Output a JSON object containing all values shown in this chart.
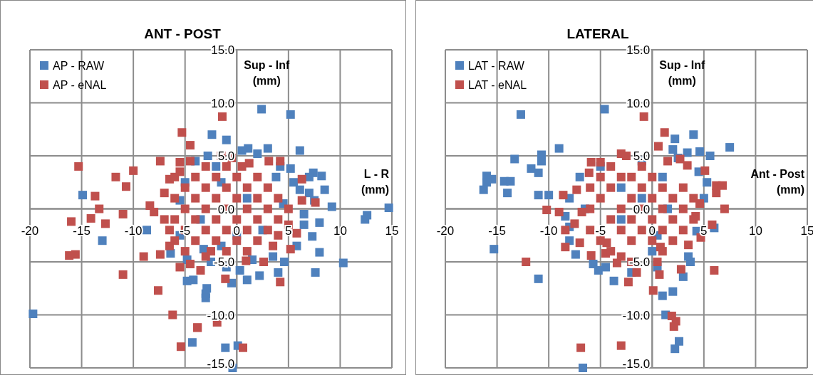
{
  "chart_data": [
    {
      "type": "scatter",
      "title": "ANT - POST",
      "xlabel": "L - R (mm)",
      "ylabel": "Sup - Inf (mm)",
      "xlim": [
        -20,
        15
      ],
      "xticks": [
        -20,
        -15,
        -10,
        -5,
        0,
        5,
        10,
        15
      ],
      "ylim": [
        -15,
        15
      ],
      "yticks": [
        {
          "value": -15,
          "label": "-15.0"
        },
        {
          "value": -10,
          "label": "-10.0"
        },
        {
          "value": -5,
          "label": "-5.0"
        },
        {
          "value": 0,
          "label": "0.0"
        },
        {
          "value": 5,
          "label": "5.0"
        },
        {
          "value": 10,
          "label": "10.0"
        },
        {
          "value": 15,
          "label": "15.0"
        }
      ],
      "grid": true,
      "legend": "top left",
      "marker": "square",
      "series": [
        {
          "name": "AP - RAW",
          "color": "#4f81bd",
          "x": [
            -19.7,
            -14.9,
            -13.0,
            -8.7,
            -6.4,
            -4.2,
            -4.3,
            -2.9,
            2.4,
            5.2,
            -2.4,
            -1.0,
            6.1,
            7.4,
            8.2,
            9.2,
            12.6,
            12.4,
            14.7,
            8.0,
            7.3,
            8.0,
            10.3,
            7.6,
            4.6,
            4.0,
            2.2,
            -3.0,
            -3.0,
            -1.1,
            0.1,
            -0.4,
            1.1,
            3.0,
            5.2,
            6.1,
            0.3,
            -2.8,
            0.5,
            2.0,
            4.2,
            5.5,
            7.0,
            8.5,
            7.5,
            6.5,
            5.8,
            3.5,
            1.5,
            -1.0,
            -2.5,
            -4.8,
            -5.5,
            -5.0,
            -4.0,
            -2.0,
            4.5,
            2.5,
            -1.5,
            1.0,
            -3.5,
            -1.5,
            0.0,
            3.8,
            7.0,
            6.5,
            -5.5,
            -3.2,
            -0.5,
            1.0,
            -4.8
          ],
          "values": [
            -9.9,
            1.3,
            -3.0,
            -2.0,
            -4.2,
            -6.7,
            -12.6,
            -7.5,
            9.4,
            8.9,
            7.0,
            6.5,
            5.5,
            3.4,
            3.1,
            0.2,
            -0.6,
            -1.0,
            0.1,
            -1.3,
            -2.6,
            -4.1,
            -5.1,
            -6.0,
            -5.0,
            -6.0,
            -6.3,
            -8.0,
            -8.4,
            -13.1,
            -12.9,
            -15.0,
            5.7,
            5.7,
            3.8,
            1.8,
            -5.8,
            5.0,
            5.5,
            5.2,
            4.0,
            2.5,
            1.5,
            1.8,
            0.8,
            -0.5,
            -3.5,
            -4.5,
            -4.8,
            -5.5,
            -5.0,
            -4.8,
            -2.5,
            2.5,
            4.5,
            4.0,
            0.5,
            -2.0,
            -3.5,
            1.0,
            -1.0,
            2.5,
            -2.5,
            3.0,
            3.0,
            -1.5,
            0.8,
            -3.8,
            -7.0,
            -6.7,
            -6.8
          ]
        },
        {
          "name": "AP - eNAL",
          "color": "#c0504d",
          "x": [
            -15.3,
            -13.7,
            -13.3,
            -14.1,
            -16.0,
            -12.7,
            -16.2,
            -15.6,
            -11.7,
            -10.7,
            -10.0,
            -11.0,
            -9.0,
            -7.4,
            -11.0,
            -7.6,
            -6.2,
            -3.8,
            -5.4,
            -7.4,
            -5.3,
            -4.5,
            -8.4,
            -8.0,
            -5.5,
            -6.5,
            -1.4,
            6.3,
            6.3,
            7.6,
            5.8,
            5.2,
            4.2,
            2.6,
            0.6,
            -1.9,
            -3.8,
            -1.1,
            0.9,
            3.1,
            4.2,
            -0.5,
            1.2,
            -6.0,
            -6.0,
            -6.0,
            -6.0,
            -5.0,
            -5.0,
            -5.0,
            -5.0,
            -4.0,
            -4.0,
            -4.0,
            -4.0,
            -3.0,
            -3.0,
            -3.0,
            -3.0,
            -3.0,
            -2.0,
            -2.0,
            -2.0,
            -2.0,
            -1.0,
            -1.0,
            -1.0,
            -1.0,
            -1.0,
            0.0,
            0.0,
            0.0,
            0.0,
            1.0,
            1.0,
            1.0,
            1.0,
            2.0,
            2.0,
            2.0,
            2.0,
            3.0,
            3.0,
            3.0,
            4.0,
            4.0,
            5.0,
            -5.5,
            -4.5,
            -6.5,
            -3.5,
            -7.0,
            -7.0,
            -2.5,
            -1.5,
            0.5,
            -4.5,
            -5.5,
            -6.5,
            5.0,
            4.0,
            3.5
          ],
          "values": [
            4.0,
            1.2,
            0.0,
            -0.9,
            -1.2,
            -1.4,
            -4.4,
            -4.3,
            3.0,
            2.1,
            3.6,
            -0.5,
            -4.5,
            -4.3,
            -6.2,
            -7.7,
            -10.0,
            -11.2,
            -13.0,
            4.5,
            7.2,
            6.0,
            0.3,
            -0.3,
            4.4,
            2.8,
            8.7,
            2.8,
            0.8,
            0.6,
            -2.3,
            -3.8,
            -6.9,
            -5.0,
            -13.1,
            -10.7,
            -11.2,
            -6.6,
            -4.9,
            4.5,
            4.5,
            4.8,
            4.3,
            -3.0,
            -1.0,
            1.0,
            3.0,
            -4.0,
            -2.0,
            0.0,
            2.0,
            -3.0,
            -1.0,
            1.0,
            3.0,
            -4.5,
            -2.0,
            0.0,
            2.0,
            4.0,
            -3.0,
            -1.0,
            1.0,
            3.0,
            -4.0,
            -2.0,
            0.0,
            2.0,
            4.0,
            -3.0,
            -1.0,
            1.0,
            3.0,
            -4.0,
            -2.0,
            0.0,
            2.0,
            -3.0,
            -1.0,
            1.0,
            3.0,
            -2.0,
            0.0,
            2.0,
            -1.0,
            1.0,
            0.0,
            -5.5,
            -5.2,
            -2.0,
            -5.8,
            -1.0,
            1.5,
            -4.0,
            5.0,
            4.0,
            4.5,
            3.5,
            -3.5,
            -1.5,
            -2.5,
            -3.5
          ]
        }
      ]
    },
    {
      "type": "scatter",
      "title": "LATERAL",
      "xlabel": "Ant - Post (mm)",
      "ylabel": "Sup - Inf (mm)",
      "xlim": [
        -20,
        15
      ],
      "xticks": [
        -20,
        -15,
        -10,
        -5,
        0,
        5,
        10,
        15
      ],
      "ylim": [
        -15,
        15
      ],
      "yticks": [
        {
          "value": -15,
          "label": "-15.0"
        },
        {
          "value": -10,
          "label": "-10.0"
        },
        {
          "value": -5,
          "label": "-5.0"
        },
        {
          "value": 0,
          "label": "0.0"
        },
        {
          "value": 5,
          "label": "5.0"
        },
        {
          "value": 10,
          "label": "10.0"
        },
        {
          "value": 15,
          "label": "15.0"
        }
      ],
      "grid": true,
      "legend": "top left",
      "marker": "square",
      "series": [
        {
          "name": "LAT - RAW",
          "color": "#4f81bd",
          "x": [
            -12.7,
            -4.6,
            -9.0,
            -13.3,
            -10.7,
            -10.7,
            -11.7,
            -11.0,
            -16.0,
            -15.5,
            -16.0,
            -16.3,
            -14.3,
            -13.7,
            -14.0,
            -11.0,
            -10.0,
            -15.3,
            -11.0,
            -8.4,
            -8.0,
            -7.4,
            -5.7,
            -5.2,
            -3.7,
            -6.7,
            4.0,
            7.5,
            2.2,
            2.0,
            4.6,
            5.6,
            3.4,
            5.3,
            6.0,
            4.3,
            3.7,
            3.0,
            1.0,
            2.0,
            1.3,
            2.6,
            2.2,
            0.5,
            -8.0,
            -7.0,
            -5.0,
            -3.0,
            -2.0,
            -1.0,
            0.0,
            1.0,
            2.5,
            3.5,
            0.5,
            -6.5,
            -8.0,
            -1.0,
            -3.0,
            1.5,
            4.5,
            5.0,
            -4.5,
            -2.0
          ],
          "values": [
            8.9,
            9.4,
            5.7,
            4.7,
            5.1,
            4.5,
            3.8,
            3.4,
            3.1,
            2.8,
            2.5,
            1.8,
            2.6,
            2.6,
            1.5,
            1.3,
            1.3,
            -3.8,
            -6.6,
            -0.7,
            -1.7,
            -4.3,
            -5.2,
            -5.8,
            -6.8,
            -15.0,
            7.0,
            5.8,
            6.6,
            5.6,
            5.4,
            5.0,
            5.3,
            2.5,
            -1.8,
            -2.1,
            -5.0,
            -6.4,
            -8.2,
            -7.8,
            -10.0,
            -12.5,
            -13.2,
            -2.5,
            1.0,
            3.0,
            4.0,
            2.0,
            -5.0,
            4.5,
            -4.0,
            3.0,
            4.8,
            -4.5,
            -5.5,
            0.0,
            -3.0,
            1.0,
            -1.0,
            0.0,
            3.5,
            1.0,
            -5.5,
            -6.0
          ]
        },
        {
          "name": "LAT - eNAL",
          "color": "#c0504d",
          "x": [
            -6.9,
            -3.0,
            -12.2,
            -10.2,
            -9.0,
            -8.4,
            -8.4,
            -5.9,
            -4.5,
            -3.4,
            -2.3,
            -3.0,
            -5.9,
            -5.0,
            -6.1,
            -7.3,
            -8.6,
            -6.8,
            -7.5,
            -7.0,
            -4.4,
            -0.8,
            1.2,
            0.6,
            2.7,
            3.4,
            5.1,
            6.2,
            6.8,
            6.2,
            7.0,
            5.8,
            4.7,
            3.5,
            6.0,
            2.8,
            0.7,
            0.1,
            1.9,
            2.3,
            2.1,
            0.8,
            4.2,
            4.6,
            -6.0,
            -6.0,
            -6.0,
            -5.0,
            -5.0,
            -5.0,
            -4.0,
            -4.0,
            -4.0,
            -4.0,
            -3.0,
            -3.0,
            -3.0,
            -3.0,
            -2.0,
            -2.0,
            -2.0,
            -2.0,
            -2.0,
            -1.0,
            -1.0,
            -1.0,
            -1.0,
            0.0,
            0.0,
            0.0,
            0.0,
            1.0,
            1.0,
            1.0,
            1.0,
            2.0,
            2.0,
            2.0,
            3.0,
            3.0,
            3.0,
            4.0,
            4.0,
            -1.5,
            0.5,
            -2.5,
            1.5
          ],
          "values": [
            -13.1,
            -12.9,
            -5.0,
            -0.1,
            -0.3,
            -2.0,
            -3.6,
            -4.4,
            -4.2,
            -5.1,
            -6.9,
            5.2,
            4.4,
            4.4,
            3.4,
            1.8,
            1.3,
            -0.3,
            -1.4,
            -3.2,
            -3.2,
            8.7,
            7.2,
            5.9,
            4.7,
            4.1,
            3.6,
            2.2,
            2.2,
            1.5,
            0.0,
            -1.5,
            -2.7,
            -3.4,
            -5.8,
            -5.7,
            -6.2,
            -7.7,
            -10.1,
            -10.6,
            -11.1,
            -3.6,
            -0.7,
            0.5,
            -2.0,
            0.0,
            2.0,
            -3.0,
            1.0,
            3.0,
            -4.0,
            -1.0,
            2.0,
            4.0,
            -2.0,
            0.0,
            3.0,
            -4.5,
            -3.0,
            -1.0,
            1.0,
            3.0,
            -5.0,
            -2.0,
            0.0,
            2.0,
            4.0,
            -3.0,
            -1.0,
            1.0,
            3.0,
            -4.0,
            -2.0,
            0.0,
            2.0,
            -3.0,
            -1.0,
            1.0,
            -2.0,
            0.0,
            2.0,
            -1.0,
            1.0,
            -6.0,
            -5.0,
            5.0,
            4.5
          ]
        }
      ]
    }
  ]
}
